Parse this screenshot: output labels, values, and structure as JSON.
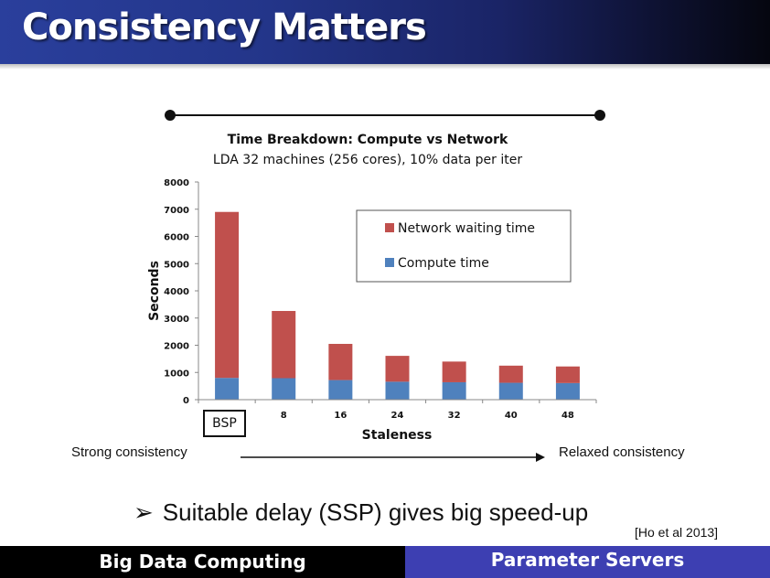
{
  "slide": {
    "title": "Consistency Matters",
    "strong_label": "Strong consistency",
    "relaxed_label": "Relaxed consistency",
    "bullet_arrow": "➢",
    "bullet_text": "Suitable delay (SSP) gives big speed-up",
    "citation": "[Ho et al 2013]"
  },
  "footer": {
    "left": "Big Data Computing",
    "right": "Parameter Servers"
  },
  "colors": {
    "title_bar": "#233589",
    "network": "#c0504d",
    "compute": "#4f81bd",
    "footer_right": "#3d3fb2"
  },
  "chart_data": {
    "type": "bar",
    "stacked": true,
    "title": "Time Breakdown: Compute vs Network",
    "subtitle": "LDA 32 machines (256 cores), 10% data per iter",
    "xlabel": "Staleness",
    "ylabel": "Seconds",
    "categories": [
      "BSP",
      "8",
      "16",
      "24",
      "32",
      "40",
      "48"
    ],
    "ylim": [
      0,
      8000
    ],
    "yticks": [
      0,
      1000,
      2000,
      3000,
      4000,
      5000,
      6000,
      7000,
      8000
    ],
    "series": [
      {
        "name": "Compute time",
        "color": "#4f81bd",
        "values": [
          800,
          790,
          720,
          660,
          640,
          620,
          610
        ]
      },
      {
        "name": "Network waiting time",
        "color": "#c0504d",
        "values": [
          6100,
          2470,
          1330,
          950,
          760,
          630,
          610
        ]
      }
    ],
    "legend": {
      "position": "top-right",
      "order": [
        "Network waiting time",
        "Compute time"
      ]
    },
    "grid": false
  }
}
